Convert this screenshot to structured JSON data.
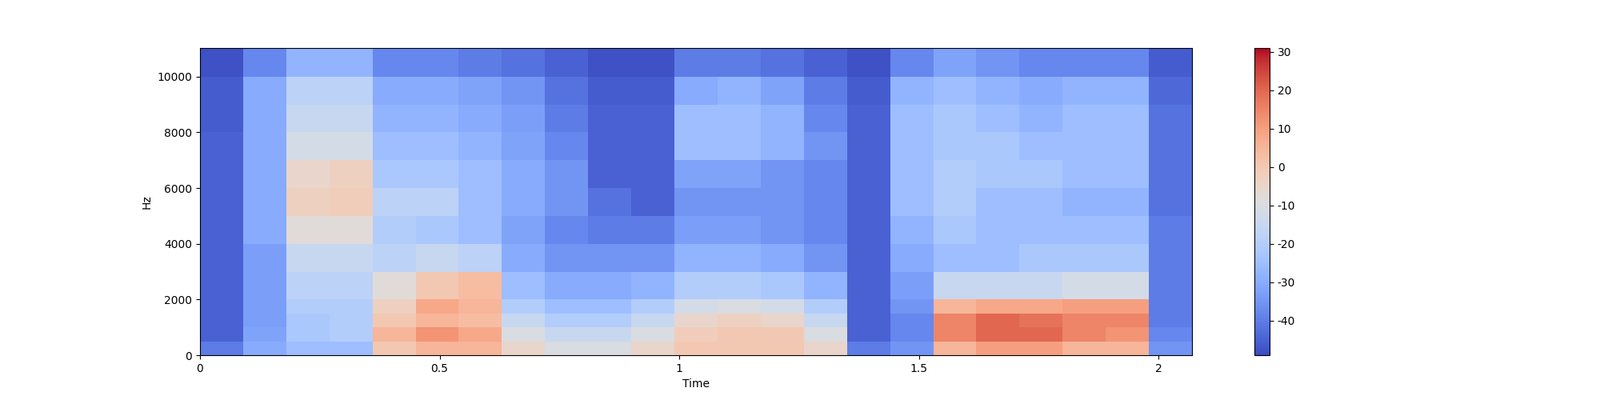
{
  "chart_data": {
    "type": "heatmap",
    "x_label": "Time",
    "y_label": "Hz",
    "color": "coolwarm",
    "xlim": [
      0,
      2.07
    ],
    "xticks": [
      0,
      0.5,
      1,
      1.5,
      2
    ],
    "ylim": [
      0,
      11025
    ],
    "yticks": [
      0,
      2000,
      4000,
      6000,
      8000,
      10000
    ],
    "x_edges": [
      0,
      0.09,
      0.18,
      0.27,
      0.36,
      0.45,
      0.54,
      0.63,
      0.72,
      0.81,
      0.9,
      0.99,
      1.08,
      1.17,
      1.26,
      1.35,
      1.44,
      1.53,
      1.62,
      1.71,
      1.8,
      1.89,
      1.98,
      2.07
    ],
    "y_edges": [
      0,
      500,
      1000,
      1500,
      2000,
      3000,
      4000,
      5000,
      6000,
      7000,
      8000,
      9000,
      10000,
      11025
    ],
    "cells": [
      [
        -40,
        -30,
        -25,
        -25,
        0,
        5,
        5,
        -5,
        -10,
        -10,
        -5,
        0,
        0,
        0,
        -5,
        -40,
        -35,
        5,
        10,
        10,
        5,
        5,
        -35
      ],
      [
        -45,
        -32,
        -22,
        -20,
        5,
        12,
        8,
        -10,
        -15,
        -15,
        -10,
        -2,
        0,
        0,
        -10,
        -45,
        -38,
        15,
        20,
        20,
        15,
        12,
        -38
      ],
      [
        -45,
        -33,
        -22,
        -20,
        0,
        5,
        3,
        -15,
        -20,
        -20,
        -15,
        -5,
        -3,
        -5,
        -15,
        -45,
        -38,
        15,
        20,
        18,
        15,
        15,
        -40
      ],
      [
        -45,
        -33,
        -20,
        -20,
        -3,
        8,
        5,
        -20,
        -25,
        -25,
        -20,
        -12,
        -10,
        -12,
        -20,
        -45,
        -35,
        5,
        8,
        8,
        10,
        10,
        -40
      ],
      [
        -45,
        -33,
        -18,
        -18,
        -8,
        0,
        3,
        -25,
        -30,
        -30,
        -28,
        -20,
        -20,
        -22,
        -28,
        -45,
        -33,
        -15,
        -15,
        -15,
        -12,
        -12,
        -40
      ],
      [
        -45,
        -33,
        -15,
        -15,
        -18,
        -15,
        -18,
        -30,
        -35,
        -35,
        -35,
        -28,
        -28,
        -30,
        -35,
        -45,
        -30,
        -25,
        -25,
        -22,
        -22,
        -22,
        -40
      ],
      [
        -45,
        -30,
        -8,
        -8,
        -20,
        -22,
        -25,
        -32,
        -38,
        -40,
        -40,
        -33,
        -33,
        -35,
        -38,
        -45,
        -28,
        -22,
        -25,
        -25,
        -25,
        -25,
        -40
      ],
      [
        -45,
        -30,
        -3,
        -2,
        -18,
        -18,
        -25,
        -30,
        -35,
        -42,
        -45,
        -35,
        -35,
        -35,
        -38,
        -45,
        -25,
        -20,
        -25,
        -25,
        -28,
        -28,
        -42
      ],
      [
        -45,
        -30,
        -5,
        -3,
        -22,
        -22,
        -25,
        -30,
        -35,
        -45,
        -45,
        -32,
        -32,
        -35,
        -38,
        -45,
        -25,
        -20,
        -22,
        -22,
        -25,
        -25,
        -42
      ],
      [
        -45,
        -30,
        -12,
        -12,
        -25,
        -25,
        -28,
        -32,
        -38,
        -45,
        -45,
        -25,
        -25,
        -28,
        -35,
        -45,
        -25,
        -22,
        -22,
        -25,
        -25,
        -25,
        -42
      ],
      [
        -46,
        -30,
        -15,
        -15,
        -28,
        -28,
        -30,
        -33,
        -40,
        -45,
        -45,
        -25,
        -25,
        -28,
        -38,
        -45,
        -25,
        -22,
        -25,
        -28,
        -25,
        -25,
        -42
      ],
      [
        -46,
        -30,
        -18,
        -18,
        -30,
        -30,
        -32,
        -35,
        -42,
        -46,
        -46,
        -30,
        -28,
        -32,
        -40,
        -46,
        -28,
        -25,
        -28,
        -30,
        -28,
        -28,
        -44
      ],
      [
        -48,
        -38,
        -28,
        -28,
        -38,
        -38,
        -40,
        -42,
        -45,
        -48,
        -48,
        -40,
        -40,
        -42,
        -45,
        -48,
        -38,
        -32,
        -35,
        -38,
        -38,
        -38,
        -46
      ]
    ],
    "color_range": [
      -49,
      31
    ],
    "colorbar_ticks": [
      -40,
      -30,
      -20,
      -10,
      0,
      10,
      20,
      30
    ]
  }
}
